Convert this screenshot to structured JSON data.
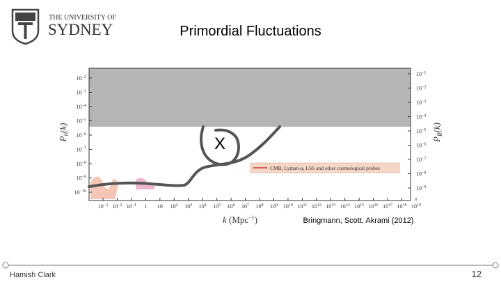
{
  "header": {
    "logo_line1": "THE UNIVERSITY OF",
    "logo_line2": "SYDNEY",
    "title": "Primordial Fluctuations"
  },
  "figure": {
    "left_axis_label": {
      "main": "P",
      "sub": "h",
      "suffix": "(k)"
    },
    "right_axis_label": {
      "main": "P",
      "sub": "R",
      "suffix": "(k)"
    },
    "x_axis_label": {
      "main": "k",
      "unit": "(Mpc",
      "exp": "−1",
      "close": ")"
    },
    "left_ticks": [
      {
        "base": "10",
        "exp": "−2"
      },
      {
        "base": "10",
        "exp": "−3"
      },
      {
        "base": "10",
        "exp": "−4"
      },
      {
        "base": "10",
        "exp": "−5"
      },
      {
        "base": "10",
        "exp": "−6"
      },
      {
        "base": "10",
        "exp": "−7"
      },
      {
        "base": "10",
        "exp": "−8"
      },
      {
        "base": "10",
        "exp": "−9"
      },
      {
        "base": "10",
        "exp": "−10"
      }
    ],
    "right_ticks": [
      {
        "base": "10",
        "exp": "−1"
      },
      {
        "base": "10",
        "exp": "−2"
      },
      {
        "base": "10",
        "exp": "−3"
      },
      {
        "base": "10",
        "exp": "−4"
      },
      {
        "base": "10",
        "exp": "−5"
      },
      {
        "base": "10",
        "exp": "−6"
      },
      {
        "base": "10",
        "exp": "−7"
      },
      {
        "base": "10",
        "exp": "−8"
      },
      {
        "base": "10",
        "exp": "−9"
      }
    ],
    "x_ticks": [
      {
        "base": "10",
        "exp": "−3"
      },
      {
        "base": "10",
        "exp": "−2"
      },
      {
        "base": "10",
        "exp": "−1"
      },
      {
        "base": "1",
        "exp": ""
      },
      {
        "base": "10",
        "exp": ""
      },
      {
        "base": "10",
        "exp": "2"
      },
      {
        "base": "10",
        "exp": "3"
      },
      {
        "base": "10",
        "exp": "4"
      },
      {
        "base": "10",
        "exp": "5"
      },
      {
        "base": "10",
        "exp": "6"
      },
      {
        "base": "10",
        "exp": "7"
      },
      {
        "base": "10",
        "exp": "8"
      },
      {
        "base": "10",
        "exp": "9"
      },
      {
        "base": "10",
        "exp": "10"
      },
      {
        "base": "10",
        "exp": "11"
      },
      {
        "base": "10",
        "exp": "12"
      },
      {
        "base": "10",
        "exp": "13"
      },
      {
        "base": "10",
        "exp": "14"
      },
      {
        "base": "10",
        "exp": "15"
      },
      {
        "base": "10",
        "exp": "16"
      },
      {
        "base": "10",
        "exp": "17"
      },
      {
        "base": "10",
        "exp": "18"
      },
      {
        "base": "10",
        "exp": "19"
      }
    ],
    "legend": "CMB, Lyman-α, LSS and other cosmological probes",
    "marker": "X",
    "citation": "Bringmann, Scott, Akrami (2012)"
  },
  "footer": {
    "author": "Hamish Clark",
    "page": "12"
  }
}
